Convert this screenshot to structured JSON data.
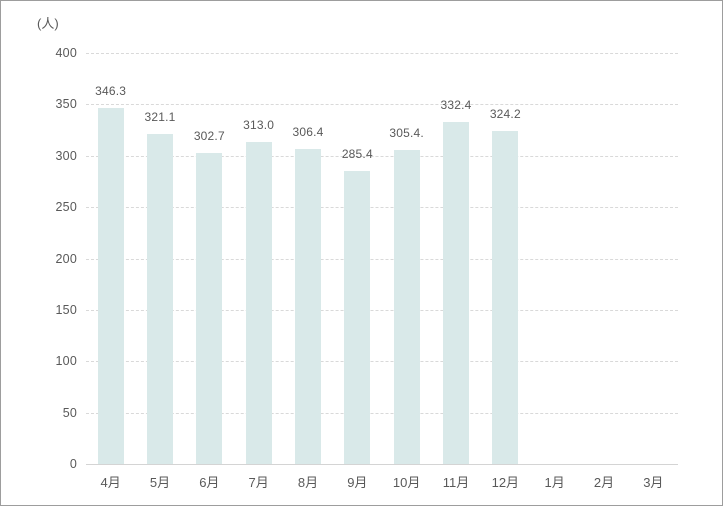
{
  "chart_data": {
    "type": "bar",
    "title": "",
    "unit_label": "(人)",
    "categories": [
      "4月",
      "5月",
      "6月",
      "7月",
      "8月",
      "9月",
      "10月",
      "11月",
      "12月",
      "1月",
      "2月",
      "3月"
    ],
    "values": [
      346.3,
      321.1,
      302.7,
      313.0,
      306.4,
      285.4,
      305.4,
      332.4,
      324.2,
      null,
      null,
      null
    ],
    "bar_labels": [
      "346.3",
      "321.1",
      "302.7",
      "313.0",
      "306.4",
      "285.4",
      "305.4.",
      "332.4",
      "324.2",
      "",
      "",
      ""
    ],
    "ylim": [
      0,
      400
    ],
    "ytick_step": 50,
    "ytick_labels": [
      "0",
      "50",
      "100",
      "150",
      "200",
      "250",
      "300",
      "350",
      "400"
    ],
    "grid": {
      "horizontal": true,
      "style": "dashed"
    },
    "colors": {
      "bar": "#d9e9e9",
      "gridline": "#d9d9d9",
      "axis_line": "#d4d4d4",
      "text": "#595959",
      "border": "#9d9d9d",
      "background": "#ffffff"
    }
  }
}
